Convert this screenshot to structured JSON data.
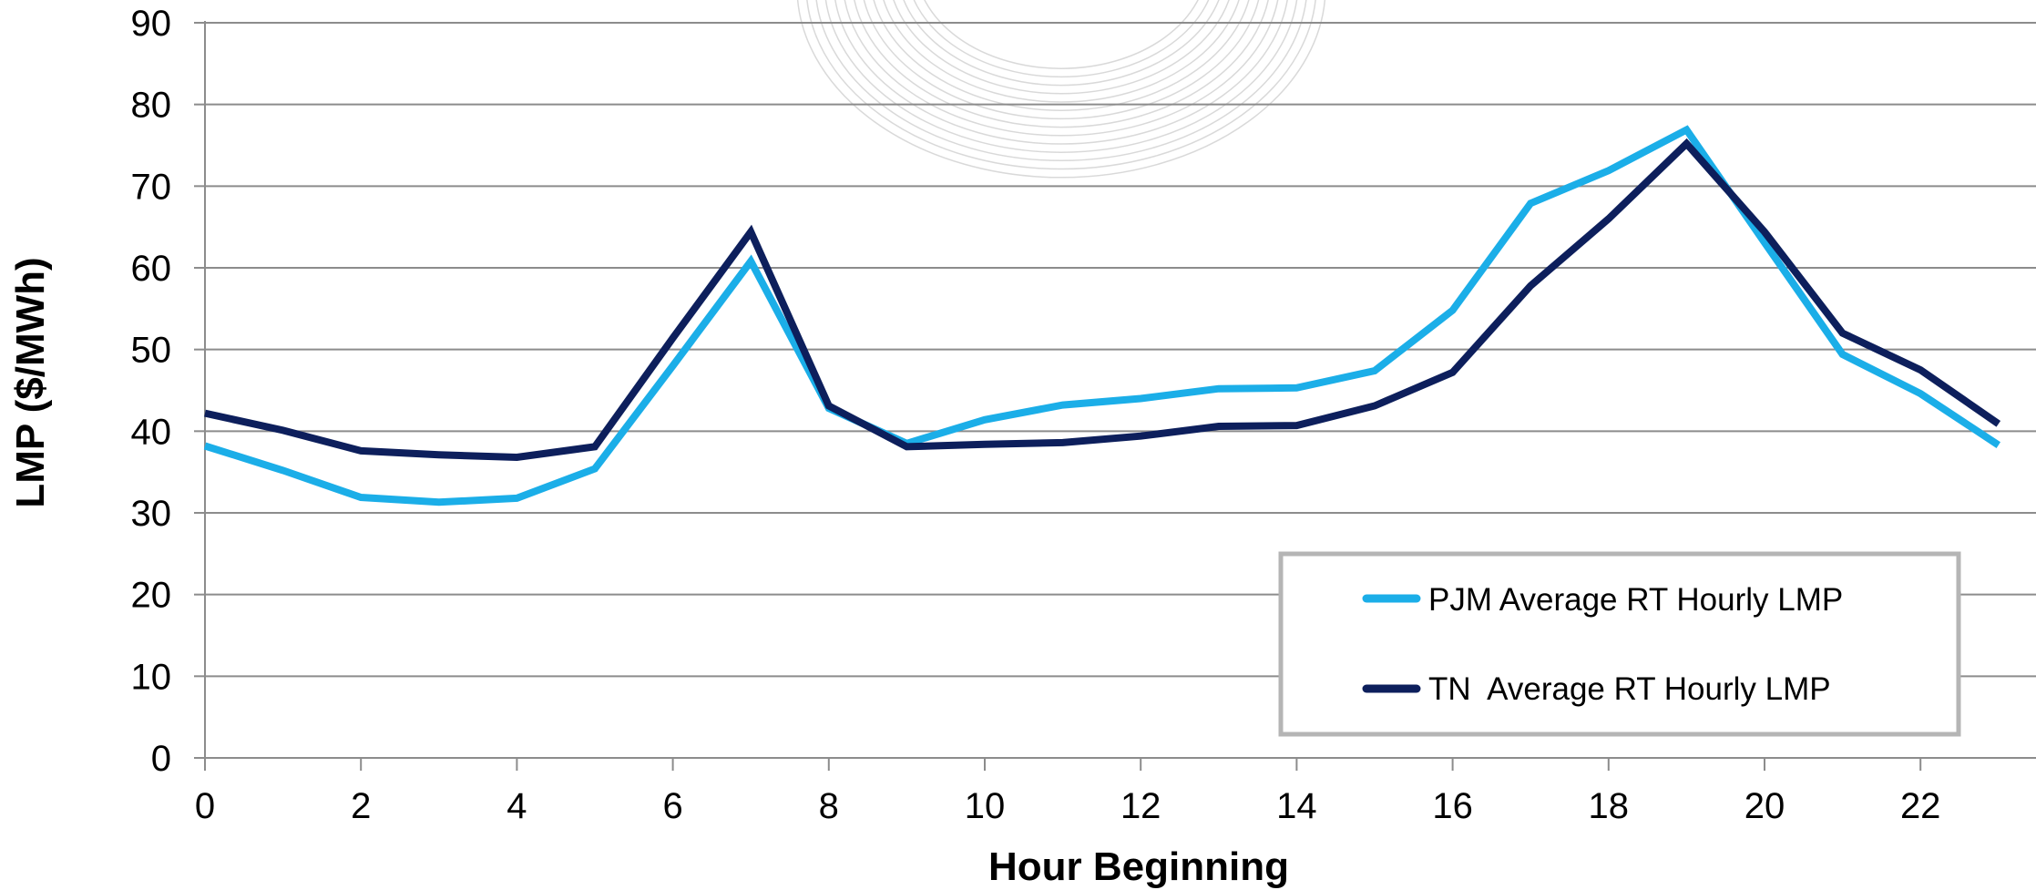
{
  "chart_data": {
    "type": "line",
    "title": "",
    "xlabel": "Hour Beginning",
    "ylabel": "LMP ($/MWh)",
    "xlim": [
      0,
      23
    ],
    "ylim": [
      0,
      90
    ],
    "x_ticks": [
      0,
      2,
      4,
      6,
      8,
      10,
      12,
      14,
      16,
      18,
      20,
      22
    ],
    "y_ticks": [
      0,
      10,
      20,
      30,
      40,
      50,
      60,
      70,
      80,
      90
    ],
    "grid": "horizontal",
    "legend_position": "bottom-right",
    "x": [
      0,
      1,
      2,
      3,
      4,
      5,
      6,
      7,
      8,
      9,
      10,
      11,
      12,
      13,
      14,
      15,
      16,
      17,
      18,
      19,
      20,
      21,
      22,
      23
    ],
    "series": [
      {
        "name": "PJM Average RT Hourly LMP",
        "color": "#1BAEE8",
        "values": [
          38.2,
          35.2,
          31.9,
          31.3,
          31.8,
          35.4,
          48.0,
          60.8,
          42.8,
          38.5,
          41.4,
          43.2,
          44.0,
          45.2,
          45.3,
          47.4,
          54.8,
          67.9,
          71.9,
          76.9,
          63.1,
          49.4,
          44.6,
          38.3
        ]
      },
      {
        "name": "TN  Average RT Hourly LMP",
        "color": "#0D1F5C",
        "values": [
          42.2,
          40.1,
          37.6,
          37.1,
          36.8,
          38.1,
          51.4,
          64.4,
          43.1,
          38.1,
          38.4,
          38.6,
          39.4,
          40.6,
          40.7,
          43.1,
          47.2,
          57.8,
          66.0,
          75.2,
          64.4,
          52.0,
          47.5,
          40.9
        ]
      }
    ]
  }
}
